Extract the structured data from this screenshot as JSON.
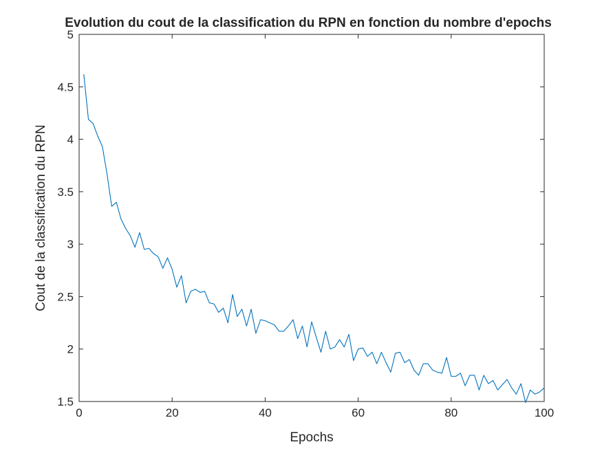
{
  "chart_data": {
    "type": "line",
    "title": "Evolution du cout de la classification du RPN en fonction du nombre d'epochs",
    "xlabel": "Epochs",
    "ylabel": "Cout de la classification du RPN",
    "xlim": [
      0,
      100
    ],
    "ylim": [
      1.5,
      5
    ],
    "xticks": [
      0,
      20,
      40,
      60,
      80,
      100
    ],
    "yticks": [
      1.5,
      2,
      2.5,
      3,
      3.5,
      4,
      4.5,
      5
    ],
    "xtick_labels": [
      "0",
      "20",
      "40",
      "60",
      "80",
      "100"
    ],
    "ytick_labels": [
      "1.5",
      "2",
      "2.5",
      "3",
      "3.5",
      "4",
      "4.5",
      "5"
    ],
    "grid": false,
    "line_color": "#0072BD",
    "series": [
      {
        "x": [
          1,
          2,
          3,
          4,
          5,
          6,
          7,
          8,
          9,
          10,
          11,
          12,
          13,
          14,
          15,
          16,
          17,
          18,
          19,
          20,
          21,
          22,
          23,
          24,
          25,
          26,
          27,
          28,
          29,
          30,
          31,
          32,
          33,
          34,
          35,
          36,
          37,
          38,
          39,
          40,
          41,
          42,
          43,
          44,
          45,
          46,
          47,
          48,
          49,
          50,
          51,
          52,
          53,
          54,
          55,
          56,
          57,
          58,
          59,
          60,
          61,
          62,
          63,
          64,
          65,
          66,
          67,
          68,
          69,
          70,
          71,
          72,
          73,
          74,
          75,
          76,
          77,
          78,
          79,
          80,
          81,
          82,
          83,
          84,
          85,
          86,
          87,
          88,
          89,
          90,
          91,
          92,
          93,
          94,
          95,
          96,
          97,
          98,
          99,
          100
        ],
        "values": [
          4.62,
          4.19,
          4.15,
          4.03,
          3.93,
          3.67,
          3.36,
          3.4,
          3.24,
          3.15,
          3.08,
          2.97,
          3.11,
          2.95,
          2.96,
          2.91,
          2.88,
          2.77,
          2.87,
          2.76,
          2.59,
          2.7,
          2.44,
          2.55,
          2.57,
          2.54,
          2.55,
          2.44,
          2.43,
          2.35,
          2.39,
          2.25,
          2.52,
          2.31,
          2.38,
          2.22,
          2.38,
          2.15,
          2.28,
          2.27,
          2.25,
          2.23,
          2.17,
          2.17,
          2.22,
          2.28,
          2.1,
          2.22,
          2.02,
          2.26,
          2.11,
          1.97,
          2.17,
          2.0,
          2.02,
          2.09,
          2.02,
          2.14,
          1.89,
          2.0,
          2.01,
          1.93,
          1.97,
          1.86,
          1.97,
          1.87,
          1.78,
          1.96,
          1.97,
          1.87,
          1.9,
          1.8,
          1.75,
          1.86,
          1.86,
          1.8,
          1.78,
          1.77,
          1.92,
          1.74,
          1.74,
          1.77,
          1.65,
          1.75,
          1.75,
          1.61,
          1.75,
          1.67,
          1.7,
          1.61,
          1.66,
          1.71,
          1.63,
          1.57,
          1.67,
          1.49,
          1.61,
          1.57,
          1.59,
          1.63
        ]
      }
    ]
  }
}
